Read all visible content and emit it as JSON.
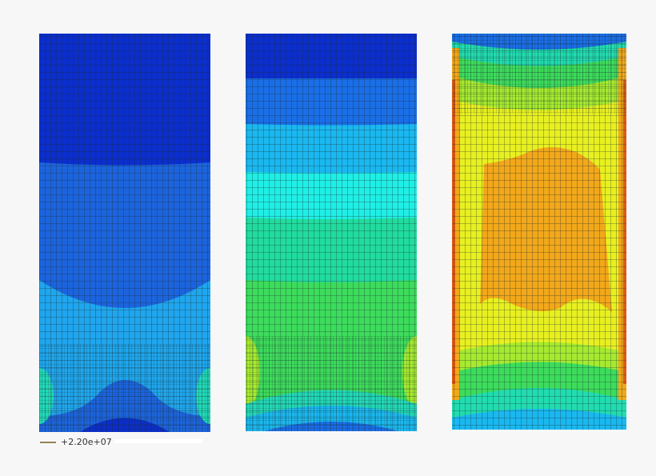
{
  "legend": {
    "label": "+2.20e+07"
  }
}
